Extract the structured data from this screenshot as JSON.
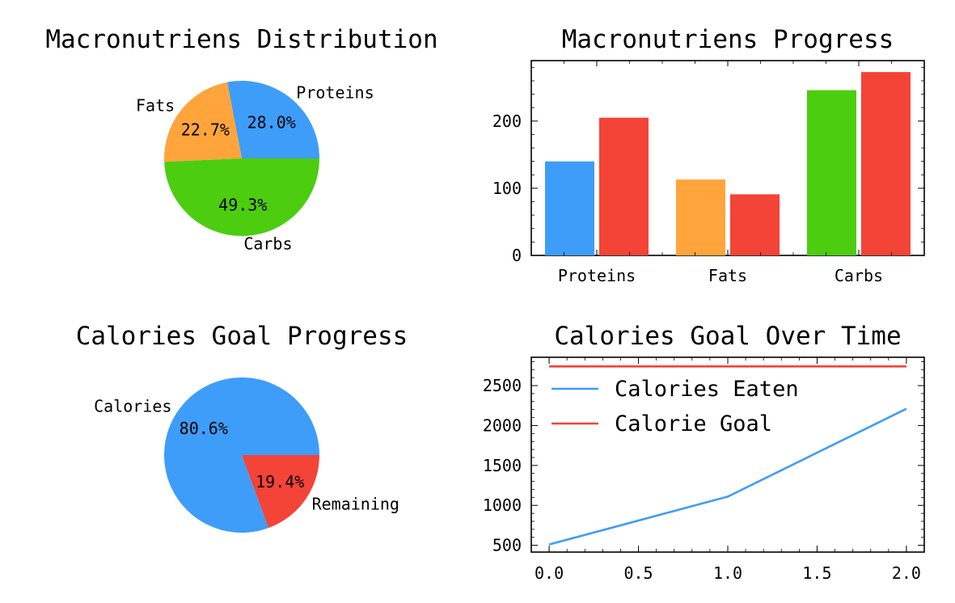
{
  "colors": {
    "blue": "#3d9df9",
    "orange": "#ffa53b",
    "green": "#4ccd10",
    "red": "#f44337",
    "axis": "#000000"
  },
  "chart_data": [
    {
      "type": "pie",
      "title": "Macronutriens Distribution",
      "labels": [
        "Proteins",
        "Fats",
        "Carbs"
      ],
      "values": [
        28.0,
        22.7,
        49.3
      ],
      "pct_labels": [
        "28.0%",
        "22.7%",
        "49.3%"
      ],
      "colors": [
        "#3d9df9",
        "#ffa53b",
        "#4ccd10"
      ]
    },
    {
      "type": "bar",
      "title": "Macronutriens Progress",
      "categories": [
        "Proteins",
        "Fats",
        "Carbs"
      ],
      "series": [
        {
          "values": [
            140,
            113,
            246
          ],
          "colors": [
            "#3d9df9",
            "#ffa53b",
            "#4ccd10"
          ]
        },
        {
          "values": [
            205,
            91,
            273
          ],
          "colors": [
            "#f44337",
            "#f44337",
            "#f44337"
          ]
        }
      ],
      "yticks": [
        "0",
        "100",
        "200"
      ],
      "ylim": [
        0,
        290
      ]
    },
    {
      "type": "pie",
      "title": "Calories Goal Progress",
      "labels": [
        "Calories",
        "Remaining"
      ],
      "values": [
        80.6,
        19.4
      ],
      "pct_labels": [
        "80.6%",
        "19.4%"
      ],
      "colors": [
        "#3d9df9",
        "#f44337"
      ]
    },
    {
      "type": "line",
      "title": "Calories Goal Over Time",
      "x": [
        0,
        1,
        2
      ],
      "series": [
        {
          "name": "Calories Eaten",
          "values": [
            510,
            1110,
            2210
          ],
          "color": "#3d9df9"
        },
        {
          "name": "Calorie Goal",
          "values": [
            2740,
            2740,
            2740
          ],
          "color": "#f44337"
        }
      ],
      "xticks": [
        "0.0",
        "0.5",
        "1.0",
        "1.5",
        "2.0"
      ],
      "yticks": [
        "500",
        "1000",
        "1500",
        "2000",
        "2500"
      ],
      "xlim": [
        -0.1,
        2.1
      ],
      "ylim": [
        415,
        2855
      ],
      "legend_position": "upper-left"
    }
  ]
}
